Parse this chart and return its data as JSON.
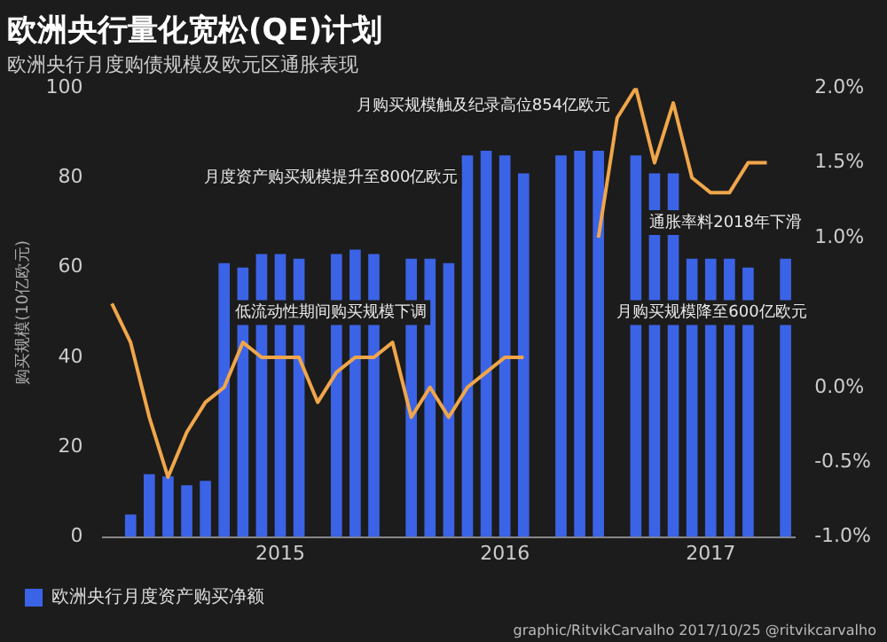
{
  "chart_data": {
    "type": "bar",
    "title": "欧洲央行量化宽松(QE)计划",
    "subtitle": "欧洲央行月度购债规模及欧元区通胀表现",
    "ylabel": "购买规模(10亿欧元)",
    "categories": [
      null,
      null,
      null,
      null,
      null,
      null,
      null,
      null,
      null,
      "2015",
      null,
      null,
      null,
      null,
      null,
      null,
      null,
      null,
      null,
      null,
      null,
      "2016",
      null,
      null,
      null,
      null,
      null,
      null,
      null,
      null,
      null,
      null,
      "2017",
      null,
      null,
      null,
      null
    ],
    "series": [
      {
        "name": "欧洲央行月度资产购买净额",
        "color": "#3b63e6",
        "values": [
          null,
          5,
          14,
          13.5,
          11.5,
          12.5,
          61,
          60,
          63,
          63,
          62,
          null,
          63,
          64,
          63,
          null,
          62,
          62,
          61,
          85,
          86,
          85,
          81,
          null,
          85,
          86,
          86,
          null,
          85,
          81,
          81,
          62,
          62,
          62,
          60,
          null,
          62
        ]
      },
      {
        "type": "line",
        "axis": "y2",
        "color": "#f0a64a",
        "values": [
          0.56,
          0.3,
          -0.2,
          -0.6,
          -0.3,
          -0.1,
          0.0,
          0.3,
          0.2,
          0.2,
          0.2,
          -0.1,
          0.1,
          0.2,
          0.2,
          0.3,
          -0.2,
          0.0,
          -0.2,
          0.0,
          0.1,
          0.2,
          0.2,
          null,
          null,
          null,
          1.0,
          1.8,
          2.0,
          1.5,
          1.9,
          1.4,
          1.3,
          1.3,
          1.5,
          1.5,
          null
        ]
      }
    ],
    "ylim": [
      0,
      100
    ],
    "yticks": [
      0,
      20,
      40,
      60,
      80,
      100
    ],
    "y2lim": [
      -1.0,
      2.0
    ],
    "y2ticks": [
      {
        "value": -1,
        "label": "-1.0%"
      },
      {
        "value": -0.5,
        "label": "-0.5%"
      },
      {
        "value": 0,
        "label": "0.0%"
      },
      {
        "value": 1,
        "label": "1.0%"
      },
      {
        "value": 1.5,
        "label": "1.5%"
      },
      {
        "value": 2,
        "label": "2.0%"
      }
    ],
    "legend": "bottom",
    "grid": false,
    "annotations": [
      "月购买规模触及纪录高位854亿欧元",
      "月度资产购买规模提升至800亿欧元",
      "通胀率料2018年下滑",
      "月购买规模降至600亿欧元",
      "低流动性期间购买规模下调",
      "graphic/RitvikCarvalho 2017/10/25 @ritvikcarvalho"
    ]
  }
}
